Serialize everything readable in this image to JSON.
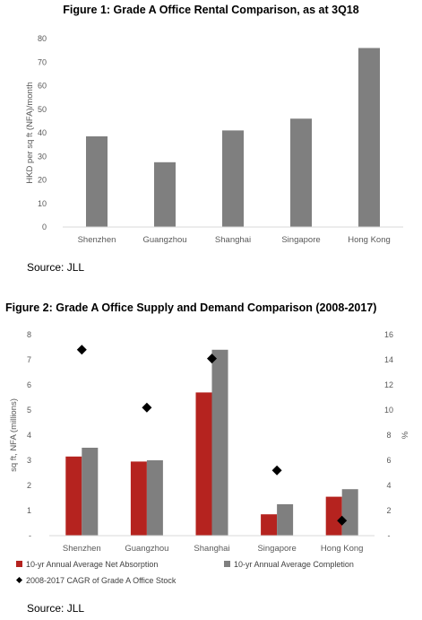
{
  "figure1": {
    "title": "Figure 1: Grade A Office Rental Comparison, as at 3Q18",
    "source": "Source: JLL"
  },
  "figure2": {
    "title": "Figure 2: Grade A Office Supply and Demand Comparison (2008-2017)",
    "source": "Source: JLL"
  },
  "colors": {
    "grey_bar": "#7f7f7f",
    "red_bar": "#b5231f",
    "marker": "#000000",
    "gridline": "#d9d9d9",
    "axis_text": "#595959"
  },
  "chart_data": [
    {
      "type": "bar",
      "title": "Figure 1: Grade A Office Rental Comparison, as at 3Q18",
      "categories": [
        "Shenzhen",
        "Guangzhou",
        "Shanghai",
        "Singapore",
        "Hong Kong"
      ],
      "values": [
        38.5,
        27.5,
        41,
        46,
        76
      ],
      "ylabel": "HKD per sq ft (NFA)/month",
      "ylim": [
        0,
        80
      ],
      "yticks": [
        0,
        10,
        20,
        30,
        40,
        50,
        60,
        70,
        80
      ],
      "grid": false
    },
    {
      "type": "bar",
      "title": "Figure 2: Grade A Office Supply and Demand Comparison (2008-2017)",
      "categories": [
        "Shenzhen",
        "Guangzhou",
        "Shanghai",
        "Singapore",
        "Hong Kong"
      ],
      "series": [
        {
          "name": "10-yr Annual Average Net Absorption",
          "type": "bar",
          "axis": "left",
          "values": [
            3.15,
            2.95,
            5.7,
            0.85,
            1.55
          ]
        },
        {
          "name": "10-yr Annual Average Completion",
          "type": "bar",
          "axis": "left",
          "values": [
            3.5,
            3.0,
            7.4,
            1.25,
            1.85
          ]
        },
        {
          "name": "2008-2017 CAGR of Grade A Office Stock",
          "type": "scatter",
          "axis": "right",
          "values": [
            14.8,
            10.2,
            14.1,
            5.2,
            1.2
          ]
        }
      ],
      "ylabel": "sq ft, NFA (millions)",
      "ylim": [
        0,
        8
      ],
      "yticks": [
        "-",
        "1",
        "2",
        "3",
        "4",
        "5",
        "6",
        "7",
        "8"
      ],
      "y2label": "%",
      "y2lim": [
        0,
        16
      ],
      "y2ticks": [
        "-",
        "2",
        "4",
        "6",
        "8",
        "10",
        "12",
        "14",
        "16"
      ],
      "legend": "bottom",
      "grid": false
    }
  ]
}
